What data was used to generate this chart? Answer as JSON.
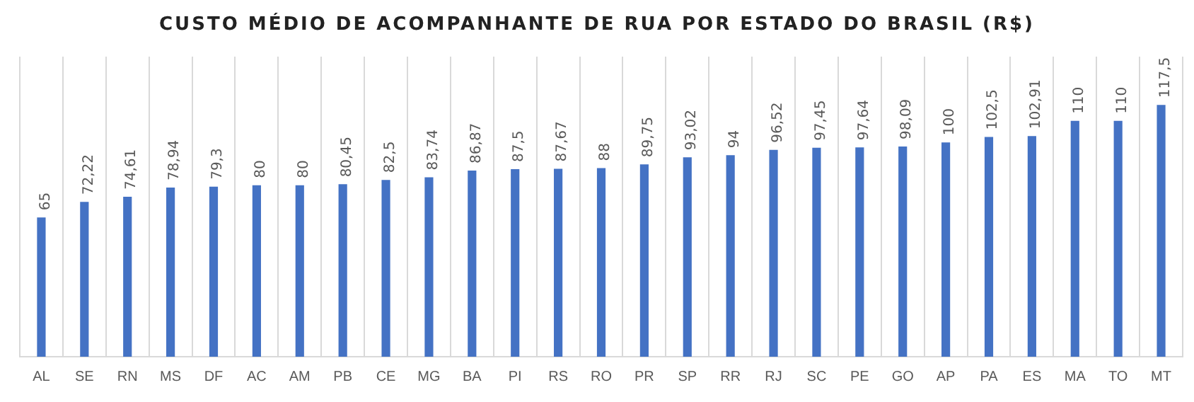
{
  "chart_data": {
    "type": "bar",
    "title": "CUSTO MÉDIO DE ACOMPANHANTE DE RUA POR ESTADO DO BRASIL (R$)",
    "categories": [
      "AL",
      "SE",
      "RN",
      "MS",
      "DF",
      "AC",
      "AM",
      "PB",
      "CE",
      "MG",
      "BA",
      "PI",
      "RS",
      "RO",
      "PR",
      "SP",
      "RR",
      "RJ",
      "SC",
      "PE",
      "GO",
      "AP",
      "PA",
      "ES",
      "MA",
      "TO",
      "MT"
    ],
    "values": [
      65,
      72.22,
      74.61,
      78.94,
      79.3,
      80,
      80,
      80.45,
      82.5,
      83.74,
      86.87,
      87.5,
      87.67,
      88,
      89.75,
      93.02,
      94,
      96.52,
      97.45,
      97.64,
      98.09,
      100,
      102.5,
      102.91,
      110,
      110,
      117.5
    ],
    "value_labels": [
      "65",
      "72,22",
      "74,61",
      "78,94",
      "79,3",
      "80",
      "80",
      "80,45",
      "82,5",
      "83,74",
      "86,87",
      "87,5",
      "87,67",
      "88",
      "89,75",
      "93,02",
      "94",
      "96,52",
      "97,45",
      "97,64",
      "98,09",
      "100",
      "102,5",
      "102,91",
      "110",
      "110",
      "117,5"
    ],
    "color": "#4472c4",
    "ylim": [
      0,
      140
    ],
    "tick_labels": "x",
    "grid": "x",
    "legend": false
  }
}
